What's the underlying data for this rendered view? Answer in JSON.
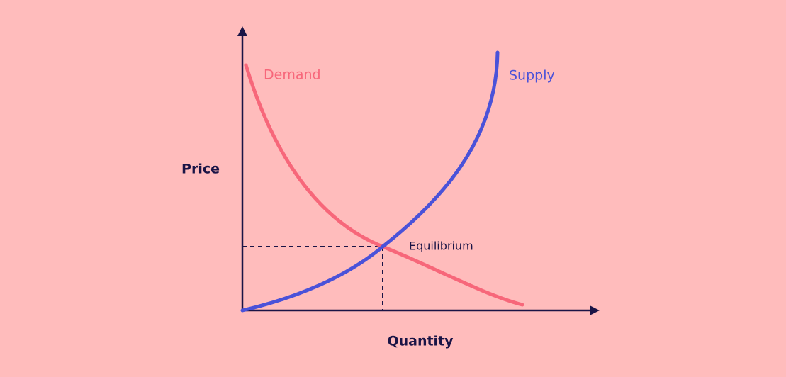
{
  "axis_labels": {
    "y": "Price",
    "x": "Quantity"
  },
  "curves": {
    "demand": "Demand",
    "supply": "Supply"
  },
  "point_label": "Equilibrium"
}
